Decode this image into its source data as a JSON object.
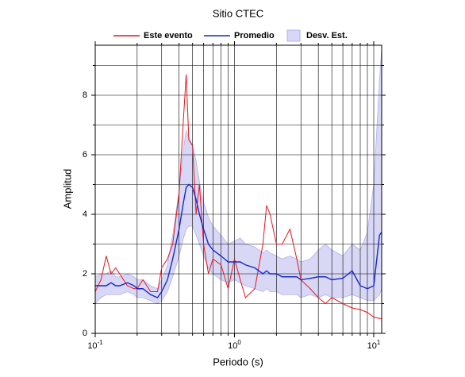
{
  "chart_data": {
    "type": "line",
    "title": "Sitio CTEC",
    "xlabel": "Periodo (s)",
    "ylabel": "Amplitud",
    "log_x": true,
    "grid": true,
    "xlim": [
      0.1,
      11.4
    ],
    "ylim": [
      0,
      9.68
    ],
    "xticks": [
      {
        "value": 0.1,
        "label": "10",
        "exponent": "-1"
      },
      {
        "value": 1,
        "label": "10",
        "exponent": "0"
      },
      {
        "value": 10,
        "label": "10",
        "exponent": "1"
      }
    ],
    "xminor": [
      0.2,
      0.3,
      0.4,
      0.5,
      0.6,
      0.7,
      0.8,
      0.9,
      2,
      3,
      4,
      5,
      6,
      7,
      8,
      9
    ],
    "yticks": [
      0,
      2,
      4,
      6,
      8
    ],
    "yminor": [
      1,
      3,
      5,
      7,
      9
    ],
    "x": [
      0.1,
      0.11,
      0.12,
      0.13,
      0.14,
      0.15,
      0.17,
      0.19,
      0.2,
      0.22,
      0.25,
      0.28,
      0.3,
      0.33,
      0.36,
      0.4,
      0.43,
      0.45,
      0.47,
      0.5,
      0.53,
      0.56,
      0.6,
      0.65,
      0.7,
      0.8,
      0.9,
      1.0,
      1.1,
      1.2,
      1.4,
      1.6,
      1.7,
      1.8,
      2.0,
      2.2,
      2.5,
      2.8,
      3.0,
      3.5,
      4,
      4.5,
      5,
      6,
      7,
      8,
      9,
      10,
      11,
      11.4
    ],
    "band": {
      "name": "Desv. Est.",
      "color": "#d8d8f6",
      "edge": "#b0b0ee",
      "lower": [
        1.0,
        1.2,
        1.3,
        1.3,
        1.3,
        1.3,
        1.4,
        1.3,
        1.2,
        1.2,
        1.1,
        1.0,
        1.1,
        1.4,
        1.9,
        2.6,
        3.2,
        3.5,
        3.6,
        3.6,
        3.3,
        3.0,
        2.6,
        2.2,
        2.0,
        1.8,
        1.7,
        1.8,
        1.7,
        1.6,
        1.5,
        1.4,
        1.5,
        1.4,
        1.4,
        1.3,
        1.3,
        1.3,
        1.2,
        1.3,
        1.2,
        1.3,
        1.2,
        1.2,
        1.3,
        1.2,
        1.1,
        1.1,
        1.3,
        1.5
      ],
      "upper": [
        1.9,
        2.0,
        2.0,
        2.1,
        1.9,
        1.9,
        2.0,
        1.9,
        1.8,
        1.8,
        1.6,
        1.5,
        1.8,
        2.3,
        3.3,
        4.8,
        6.2,
        6.8,
        6.6,
        6.3,
        5.8,
        5.1,
        4.4,
        3.9,
        3.6,
        3.3,
        3.0,
        3.1,
        3.2,
        3.0,
        2.9,
        2.7,
        2.8,
        2.7,
        2.6,
        2.5,
        2.6,
        2.5,
        2.4,
        2.5,
        2.8,
        3.0,
        2.8,
        2.6,
        3.0,
        2.8,
        3.4,
        5.0,
        8.5,
        9.6
      ]
    },
    "series": [
      {
        "name": "Este evento",
        "color": "#e8141c",
        "values": [
          1.4,
          1.8,
          2.6,
          2.0,
          2.2,
          2.0,
          1.6,
          1.5,
          1.5,
          1.8,
          1.4,
          1.4,
          2.2,
          2.5,
          3.0,
          4.7,
          7.2,
          8.7,
          6.5,
          6.3,
          4.0,
          5.0,
          3.0,
          2.0,
          2.5,
          2.3,
          1.5,
          2.5,
          1.8,
          1.2,
          1.5,
          3.0,
          4.3,
          4.0,
          3.0,
          3.0,
          3.5,
          2.5,
          1.8,
          1.5,
          1.2,
          1.0,
          1.2,
          1.0,
          0.85,
          0.8,
          0.7,
          0.55,
          0.5,
          0.5
        ]
      },
      {
        "name": "Promedio",
        "color": "#1428d2",
        "values": [
          1.6,
          1.6,
          1.6,
          1.7,
          1.6,
          1.6,
          1.7,
          1.6,
          1.5,
          1.5,
          1.3,
          1.2,
          1.4,
          1.8,
          2.5,
          3.5,
          4.4,
          4.9,
          5.0,
          4.9,
          4.5,
          4.0,
          3.5,
          3.0,
          2.8,
          2.6,
          2.4,
          2.4,
          2.4,
          2.3,
          2.2,
          2.0,
          2.1,
          2.0,
          2.0,
          1.9,
          1.9,
          1.9,
          1.8,
          1.85,
          1.9,
          1.9,
          1.8,
          1.85,
          2.1,
          1.6,
          1.5,
          1.6,
          3.3,
          3.4
        ]
      }
    ]
  }
}
